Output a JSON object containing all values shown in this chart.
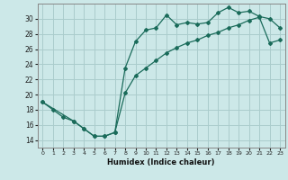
{
  "xlabel": "Humidex (Indice chaleur)",
  "ylabel": "",
  "bg_color": "#cce8e8",
  "line_color": "#1a6b5a",
  "grid_color": "#aacccc",
  "xlim": [
    -0.5,
    23.5
  ],
  "ylim": [
    13,
    32
  ],
  "yticks": [
    14,
    16,
    18,
    20,
    22,
    24,
    26,
    28,
    30
  ],
  "xticks": [
    0,
    1,
    2,
    3,
    4,
    5,
    6,
    7,
    8,
    9,
    10,
    11,
    12,
    13,
    14,
    15,
    16,
    17,
    18,
    19,
    20,
    21,
    22,
    23
  ],
  "line1_x": [
    0,
    1,
    2,
    3,
    4,
    5,
    6,
    7,
    8,
    9,
    10,
    11,
    12,
    13,
    14,
    15,
    16,
    17,
    18,
    19,
    20,
    21,
    22,
    23
  ],
  "line1_y": [
    19,
    18,
    17,
    16.5,
    15.5,
    14.5,
    14.5,
    15.0,
    23.5,
    27.0,
    28.5,
    28.8,
    30.5,
    29.2,
    29.5,
    29.3,
    29.5,
    30.8,
    31.5,
    30.8,
    31.0,
    30.3,
    30.0,
    28.8
  ],
  "line2_x": [
    0,
    3,
    4,
    5,
    6,
    7,
    8,
    9,
    10,
    11,
    12,
    13,
    14,
    15,
    16,
    17,
    18,
    19,
    20,
    21,
    22,
    23
  ],
  "line2_y": [
    19,
    16.5,
    15.5,
    14.5,
    14.5,
    15.0,
    20.2,
    22.5,
    23.5,
    24.5,
    25.5,
    26.2,
    26.8,
    27.2,
    27.8,
    28.2,
    28.8,
    29.2,
    29.8,
    30.2,
    26.8,
    27.2
  ]
}
